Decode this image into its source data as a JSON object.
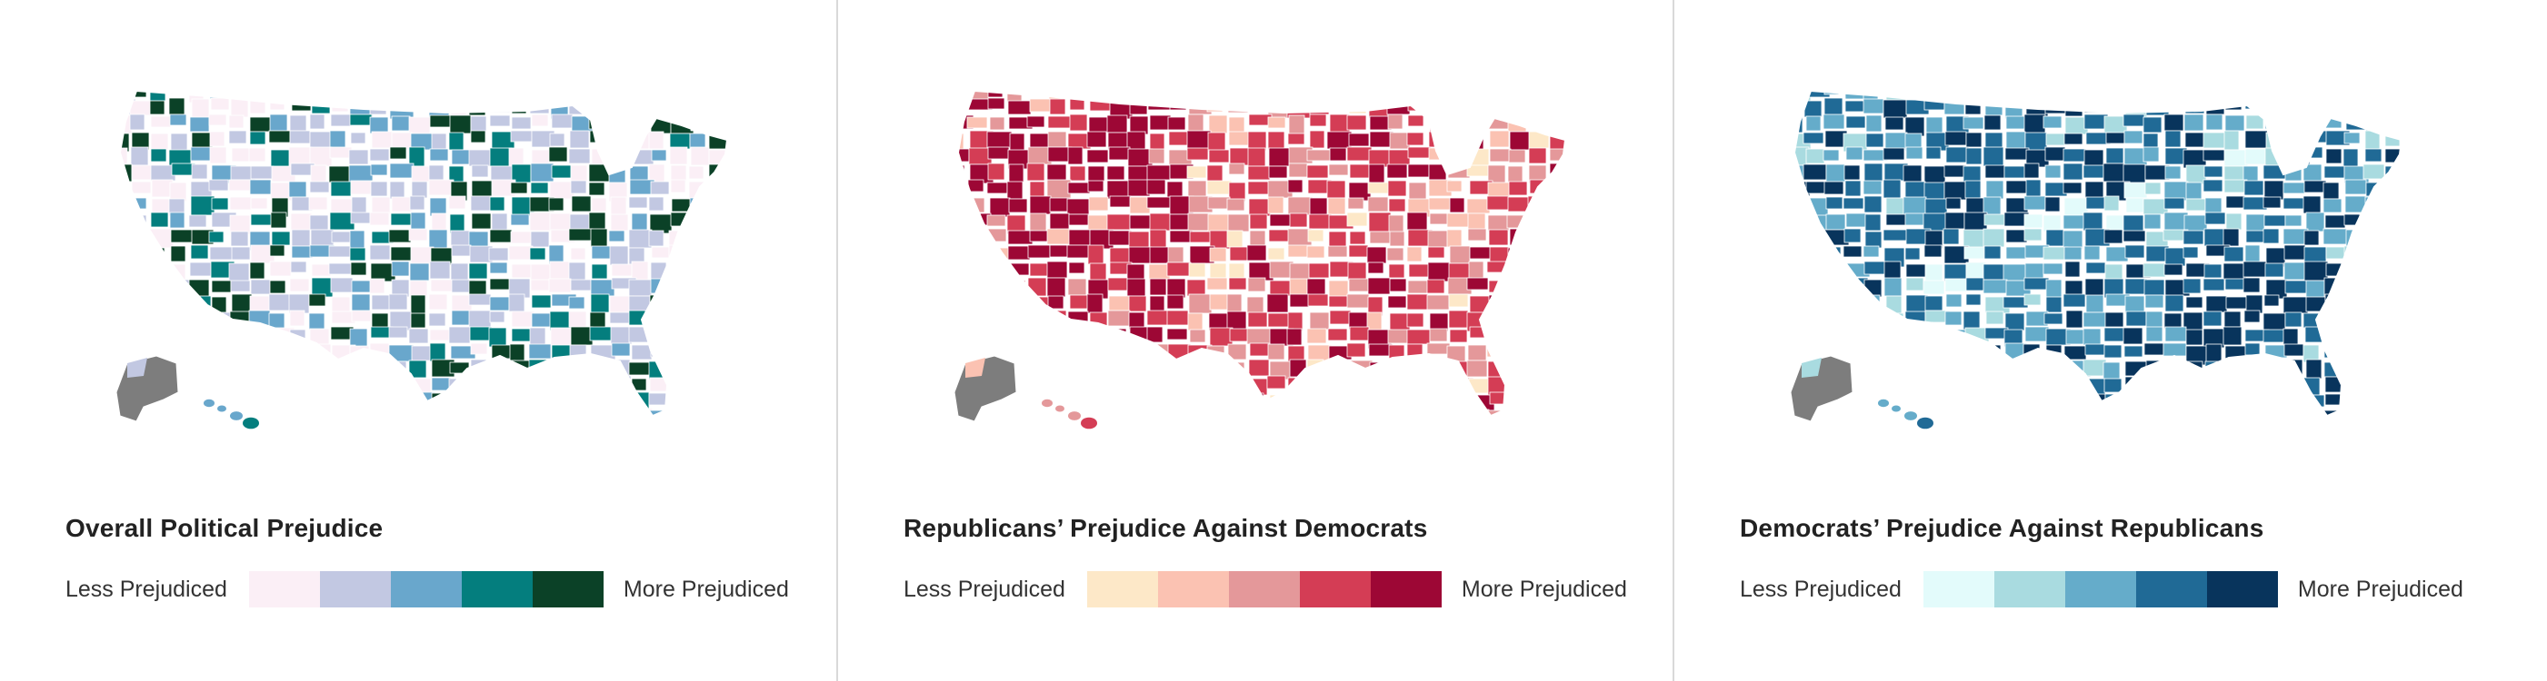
{
  "legend_labels": {
    "low": "Less Prejudiced",
    "high": "More Prejudiced"
  },
  "maps": [
    {
      "title": "Overall Political Prejudice",
      "scale": [
        "#fbeff6",
        "#c2c8e2",
        "#69a7cc",
        "#047e7e",
        "#0b4127"
      ],
      "outline": "#ffffff",
      "accent_pattern": [
        1,
        2,
        4,
        0,
        3,
        1,
        0,
        4,
        2,
        1,
        0,
        0,
        1,
        3,
        4,
        2,
        0,
        1,
        1,
        2,
        3,
        0,
        0,
        1,
        4,
        2,
        1,
        3,
        0,
        1
      ]
    },
    {
      "title": "Republicans’ Prejudice Against Democrats",
      "scale": [
        "#fde8c8",
        "#fbc2b2",
        "#e4989a",
        "#d43d55",
        "#9d0735"
      ],
      "outline": "#ffffff",
      "accent_pattern": [
        2,
        3,
        4,
        1,
        3,
        2,
        0,
        4,
        3,
        2,
        1,
        3,
        2,
        4,
        3,
        1,
        2,
        3,
        4,
        2,
        1,
        3,
        4,
        3,
        2,
        0,
        3,
        4,
        2,
        3
      ]
    },
    {
      "title": "Democrats’ Prejudice Against Republicans",
      "scale": [
        "#e3fbfb",
        "#a9dbe0",
        "#65acca",
        "#206a96",
        "#08345c"
      ],
      "outline": "#ffffff",
      "accent_pattern": [
        1,
        2,
        0,
        3,
        2,
        1,
        2,
        3,
        4,
        2,
        1,
        3,
        3,
        4,
        2,
        2,
        3,
        4,
        4,
        3,
        2,
        1,
        3,
        4,
        4,
        3,
        2,
        3,
        4,
        4
      ]
    }
  ]
}
